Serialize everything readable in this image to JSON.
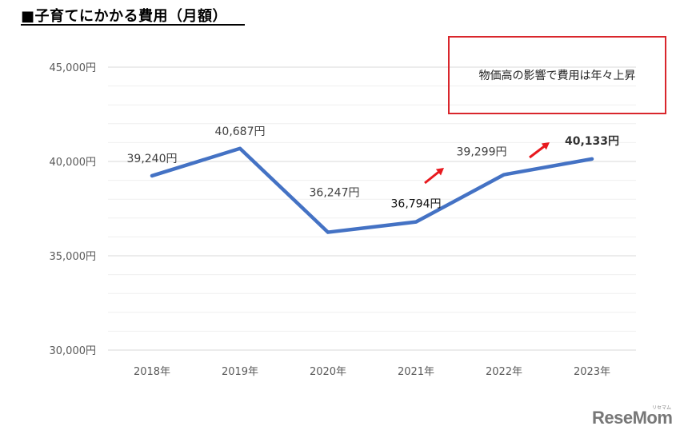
{
  "title": "■子育てにかかる費用（月額）",
  "callout": {
    "text": "物価高の影響で費用は年々上昇",
    "border_color": "#d9262c"
  },
  "logo": {
    "text": "ReseMom",
    "kana": "リセマム"
  },
  "colors": {
    "line": "#4472c4",
    "arrow": "#e8191e",
    "grid": "#d9d9d9",
    "minor_grid": "#efefef"
  },
  "chart_data": {
    "type": "line",
    "title": "■子育てにかかる費用（月額）",
    "xlabel": "",
    "ylabel": "",
    "categories": [
      "2018年",
      "2019年",
      "2020年",
      "2021年",
      "2022年",
      "2023年"
    ],
    "series": [
      {
        "name": "子育てにかかる費用（月額）",
        "values": [
          39240,
          40687,
          36247,
          36794,
          39299,
          40133
        ]
      }
    ],
    "data_labels": [
      "39,240円",
      "40,687円",
      "36,247円",
      "36,794円",
      "39,299円",
      "40,133円"
    ],
    "y_ticks": [
      30000,
      35000,
      40000,
      45000
    ],
    "y_tick_labels": [
      "30,000円",
      "35,000円",
      "40,000円",
      "45,000円"
    ],
    "ylim": [
      30000,
      45000
    ],
    "grid": true,
    "minor_grid_step": 1000,
    "legend": "none",
    "annotations": [
      "物価高の影響で費用は年々上昇",
      "red up-arrow near 2021–2022",
      "red up-arrow near 2022–2023"
    ]
  }
}
